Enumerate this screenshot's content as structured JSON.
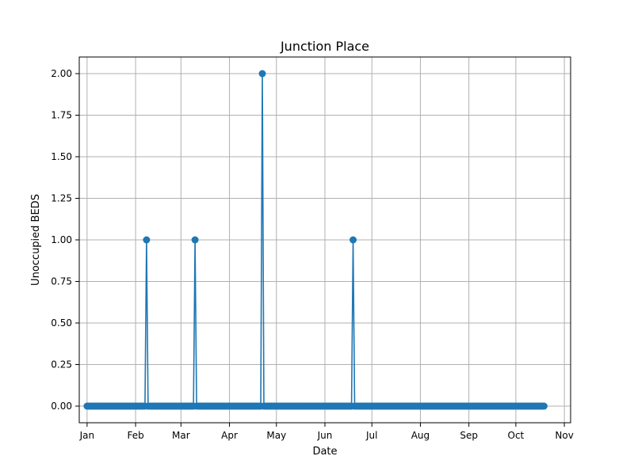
{
  "chart_data": {
    "type": "line",
    "title": "Junction Place",
    "xlabel": "Date",
    "ylabel": "Unoccupied BEDS",
    "x_axis_type": "date",
    "xlim": [
      "2023-12-26",
      "2023-11-05"
    ],
    "x_range": [
      "2023-12-27",
      "2024-11-05"
    ],
    "ylim": [
      -0.1,
      2.1
    ],
    "grid": true,
    "marker": "circle",
    "color": "#1f77b4",
    "x_ticks": [
      {
        "label": "Jan",
        "date": "2024-01-01"
      },
      {
        "label": "Feb",
        "date": "2024-02-01"
      },
      {
        "label": "Mar",
        "date": "2024-03-01"
      },
      {
        "label": "Apr",
        "date": "2024-04-01"
      },
      {
        "label": "May",
        "date": "2024-05-01"
      },
      {
        "label": "Jun",
        "date": "2024-06-01"
      },
      {
        "label": "Jul",
        "date": "2024-07-01"
      },
      {
        "label": "Aug",
        "date": "2024-08-01"
      },
      {
        "label": "Sep",
        "date": "2024-09-01"
      },
      {
        "label": "Oct",
        "date": "2024-10-01"
      },
      {
        "label": "Nov",
        "date": "2024-11-01"
      }
    ],
    "y_ticks": [
      {
        "label": "0.00",
        "value": 0
      },
      {
        "label": "0.25",
        "value": 0.25
      },
      {
        "label": "0.50",
        "value": 0.5
      },
      {
        "label": "0.75",
        "value": 0.75
      },
      {
        "label": "1.00",
        "value": 1
      },
      {
        "label": "1.25",
        "value": 1.25
      },
      {
        "label": "1.50",
        "value": 1.5
      },
      {
        "label": "1.75",
        "value": 1.75
      },
      {
        "label": "2.00",
        "value": 2
      }
    ],
    "series": [
      {
        "start_date": "2024-01-01",
        "end_date": "2024-10-19",
        "default_value": 0,
        "nonzero_points": [
          {
            "date": "2024-02-08",
            "value": 1
          },
          {
            "date": "2024-03-10",
            "value": 1
          },
          {
            "date": "2024-04-22",
            "value": 2
          },
          {
            "date": "2024-06-19",
            "value": 1
          }
        ]
      }
    ]
  }
}
